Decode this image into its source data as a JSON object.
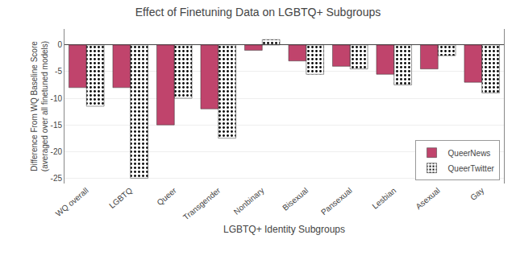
{
  "chart_data": {
    "type": "bar",
    "title": "Effect of Finetuning Data on LGBTQ+ Subgroups",
    "xlabel": "LGBTQ+ Identity Subgroups",
    "ylabel": "Difference From WQ Baseline Score\n(averaged over all finetuned models)",
    "categories": [
      "WQ overall",
      "LGBTQ",
      "Queer",
      "Transgender",
      "Nonbinary",
      "Bisexual",
      "Pansexual",
      "Lesbian",
      "Asexual",
      "Gay"
    ],
    "series": [
      {
        "name": "QueerNews",
        "color": "#c0446c",
        "values": [
          -8.0,
          -8.0,
          -15.0,
          -12.0,
          -1.0,
          -3.0,
          -4.0,
          -5.5,
          -4.5,
          -7.0
        ]
      },
      {
        "name": "QueerTwitter",
        "color": "#77ee99",
        "values": [
          -11.5,
          -25.0,
          -10.0,
          -17.5,
          1.0,
          -5.5,
          -4.5,
          -7.5,
          -2.0,
          -9.0
        ]
      }
    ],
    "ylim": [
      -26,
      3
    ],
    "yticks": [
      0,
      -5,
      -10,
      -15,
      -20,
      -25
    ],
    "grid": true,
    "legend": "lower right"
  }
}
